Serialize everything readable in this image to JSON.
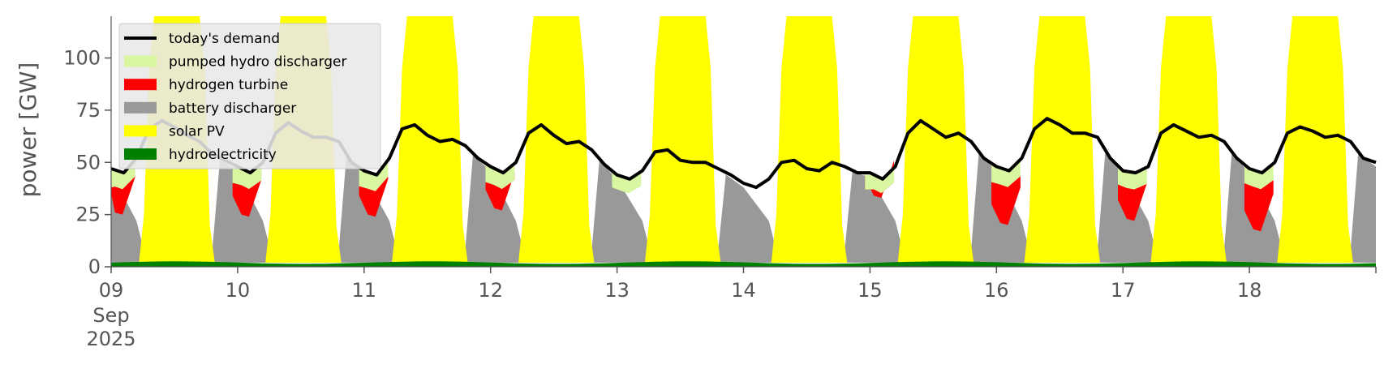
{
  "chart_data": {
    "type": "area",
    "title": "",
    "xlabel": "",
    "ylabel": "power [GW]",
    "ylim": [
      0,
      120
    ],
    "yticks": [
      "0",
      "25",
      "50",
      "75",
      "100"
    ],
    "xlim_days": [
      "2025-09-09",
      "2025-09-19"
    ],
    "xtick_labels": [
      {
        "day": "09",
        "month": "Sep",
        "year": "2025"
      },
      {
        "day": "10"
      },
      {
        "day": "11"
      },
      {
        "day": "12"
      },
      {
        "day": "13"
      },
      {
        "day": "14"
      },
      {
        "day": "15"
      },
      {
        "day": "16"
      },
      {
        "day": "17"
      },
      {
        "day": "18"
      }
    ],
    "grid": false,
    "legend_position": "top-left",
    "days": [
      {
        "date": "2025-09-09",
        "night_min": 25,
        "h2": 12,
        "ph": 8,
        "demand": [
          47,
          45,
          52,
          66,
          70,
          67,
          63,
          60,
          54,
          51
        ]
      },
      {
        "date": "2025-09-10",
        "night_min": 24,
        "h2": 13,
        "ph": 8,
        "demand": [
          48,
          45,
          50,
          64,
          69,
          65,
          62,
          62,
          60,
          50
        ]
      },
      {
        "date": "2025-09-11",
        "night_min": 24,
        "h2": 13,
        "ph": 8,
        "demand": [
          46,
          44,
          52,
          66,
          68,
          63,
          60,
          61,
          58,
          52
        ]
      },
      {
        "date": "2025-09-12",
        "night_min": 27,
        "h2": 11,
        "ph": 8,
        "demand": [
          48,
          45,
          50,
          64,
          68,
          63,
          59,
          60,
          56,
          49
        ]
      },
      {
        "date": "2025-09-13",
        "night_min": 35,
        "h2": 0,
        "ph": 7,
        "demand": [
          44,
          42,
          46,
          55,
          56,
          51,
          50,
          50,
          47,
          44
        ]
      },
      {
        "date": "2025-09-14",
        "night_min": 38,
        "h2": 0,
        "ph": 0,
        "demand": [
          40,
          38,
          42,
          50,
          51,
          47,
          46,
          50,
          48,
          45
        ]
      },
      {
        "date": "2025-09-15",
        "night_min": 33,
        "h2": 2,
        "ph": 7,
        "demand": [
          45,
          42,
          48,
          64,
          70,
          66,
          62,
          64,
          60,
          52
        ]
      },
      {
        "date": "2025-09-16",
        "night_min": 20,
        "h2": 19,
        "ph": 8,
        "demand": [
          48,
          46,
          52,
          66,
          71,
          68,
          64,
          64,
          62,
          52
        ]
      },
      {
        "date": "2025-09-17",
        "night_min": 22,
        "h2": 16,
        "ph": 8,
        "demand": [
          46,
          45,
          48,
          64,
          68,
          65,
          62,
          63,
          60,
          52
        ]
      },
      {
        "date": "2025-09-18",
        "night_min": 17,
        "h2": 20,
        "ph": 8,
        "demand": [
          47,
          45,
          50,
          64,
          67,
          65,
          62,
          63,
          60,
          52
        ]
      }
    ],
    "hydro_level": 2,
    "series": [
      {
        "name": "today's demand",
        "color": "#000000",
        "kind": "line"
      },
      {
        "name": "pumped hydro discharger",
        "color": "#d9f7a1",
        "kind": "area"
      },
      {
        "name": "hydrogen turbine",
        "color": "#ff0000",
        "kind": "area"
      },
      {
        "name": "battery discharger",
        "color": "#999999",
        "kind": "area"
      },
      {
        "name": "solar PV",
        "color": "#ffff00",
        "kind": "area"
      },
      {
        "name": "hydroelectricity",
        "color": "#008000",
        "kind": "area"
      }
    ]
  }
}
